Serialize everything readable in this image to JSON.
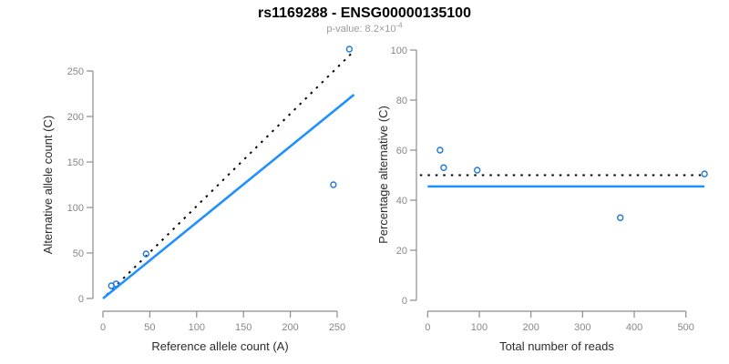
{
  "title": "rs1169288 - ENSG00000135100",
  "subtitle": {
    "prefix": "p-value: 8.2×10",
    "exponent": "-4"
  },
  "colors": {
    "accent_line_blue": "#1e90ff",
    "point_blue": "#2079d8",
    "null_line_black": "#000000",
    "axis_gray": "#8c8c8c",
    "tick_label_gray": "#878787",
    "axis_title_dark": "#2b2b2b",
    "title_black": "#000000",
    "subtitle_gray": "#9b9b9b"
  },
  "chart_data": [
    {
      "type": "scatter",
      "panel": "left",
      "xlabel": "Reference allele count (A)",
      "ylabel": "Alternative allele count (C)",
      "xlim": [
        0,
        265
      ],
      "ylim": [
        0,
        275
      ],
      "xticks": [
        0,
        50,
        100,
        150,
        200,
        250
      ],
      "yticks": [
        0,
        50,
        100,
        150,
        200,
        250
      ],
      "grid": false,
      "legend": "none",
      "points": [
        {
          "x": 9,
          "y": 14
        },
        {
          "x": 14,
          "y": 16
        },
        {
          "x": 46,
          "y": 49
        },
        {
          "x": 246,
          "y": 125
        },
        {
          "x": 263,
          "y": 274
        }
      ],
      "lines": [
        {
          "name": "identity-null-line",
          "style": "dotted",
          "color": "#000000",
          "x1": 4,
          "y1": 4,
          "x2": 266,
          "y2": 270
        },
        {
          "name": "fitted-line",
          "style": "solid",
          "color": "#1e90ff",
          "x1": 0,
          "y1": 0,
          "x2": 268,
          "y2": 224
        }
      ]
    },
    {
      "type": "scatter",
      "panel": "right",
      "xlabel": "Total number of reads",
      "ylabel": "Percentage alternative (C)",
      "xlim": [
        0,
        540
      ],
      "ylim": [
        0,
        100
      ],
      "xticks": [
        0,
        100,
        200,
        300,
        400,
        500
      ],
      "yticks": [
        0,
        20,
        40,
        60,
        80,
        100
      ],
      "grid": false,
      "legend": "none",
      "points": [
        {
          "x": 24,
          "y": 60
        },
        {
          "x": 31,
          "y": 53
        },
        {
          "x": 96,
          "y": 52
        },
        {
          "x": 373,
          "y": 33
        },
        {
          "x": 536,
          "y": 50.5
        }
      ],
      "lines": [
        {
          "name": "null-50pct-line",
          "style": "dotted",
          "color": "#000000",
          "x1": -15,
          "y1": 50,
          "x2": 529,
          "y2": 50
        },
        {
          "name": "fitted-pct-line",
          "style": "solid",
          "color": "#1e90ff",
          "x1": 0,
          "y1": 45.5,
          "x2": 536,
          "y2": 45.5
        }
      ]
    }
  ]
}
